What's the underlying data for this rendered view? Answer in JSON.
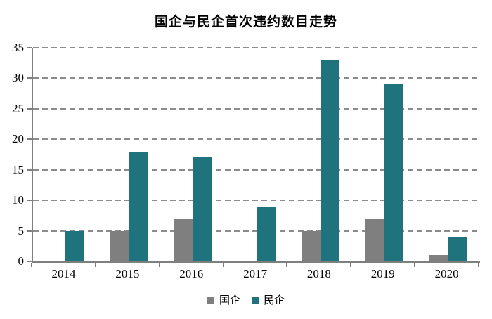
{
  "chart_data": {
    "type": "bar",
    "title": "国企与民企首次违约数目走势",
    "categories": [
      "2014",
      "2015",
      "2016",
      "2017",
      "2018",
      "2019",
      "2020"
    ],
    "series": [
      {
        "name": "国企",
        "color": "#7f7f7f",
        "values": [
          0,
          5,
          7,
          0,
          5,
          7,
          1
        ]
      },
      {
        "name": "民企",
        "color": "#1f737c",
        "values": [
          5,
          18,
          17,
          9,
          33,
          29,
          4
        ]
      }
    ],
    "xlabel": "",
    "ylabel": "",
    "ylim": [
      0,
      35
    ],
    "ytick_step": 5,
    "ytick_labels": [
      "0",
      "5",
      "10",
      "15",
      "20",
      "25",
      "30",
      "35"
    ],
    "grid": "horizontal-dashed",
    "legend_position": "bottom-center",
    "colors": {
      "axis": "#7f7f7f",
      "gridline": "#8c8c8c",
      "text": "#000000",
      "background": "#ffffff"
    }
  }
}
